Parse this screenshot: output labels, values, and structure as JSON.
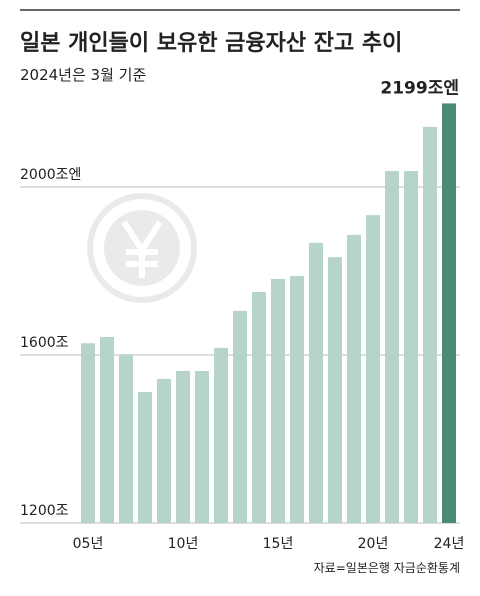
{
  "chart_data": {
    "type": "bar",
    "title": "일본 개인들이 보유한 금융자산 잔고 추이",
    "subtitle": "2024년은 3월 기준",
    "source": "자료=일본은행 자금순환통계",
    "categories": [
      "05년",
      null,
      null,
      null,
      null,
      "10년",
      null,
      null,
      null,
      null,
      "15년",
      null,
      null,
      null,
      null,
      "20년",
      null,
      null,
      null,
      "24년"
    ],
    "values": [
      1628,
      1643,
      1602,
      1512,
      1543,
      1562,
      1562,
      1617,
      1705,
      1750,
      1781,
      1788,
      1867,
      1833,
      1886,
      1933,
      2038,
      2038,
      2143,
      2199
    ],
    "value_labels": [
      null,
      null,
      null,
      null,
      null,
      null,
      null,
      null,
      null,
      null,
      null,
      null,
      null,
      null,
      null,
      null,
      null,
      null,
      null,
      "2199조엔"
    ],
    "color": "#b6d4c9",
    "highlight_color": "#4b8a78",
    "ylim": [
      1200,
      2200
    ],
    "yticks": [
      {
        "value": 1200,
        "label": "1200조"
      },
      {
        "value": 1600,
        "label": "1600조"
      },
      {
        "value": 2000,
        "label": "2000조엔"
      }
    ],
    "grid": true
  }
}
